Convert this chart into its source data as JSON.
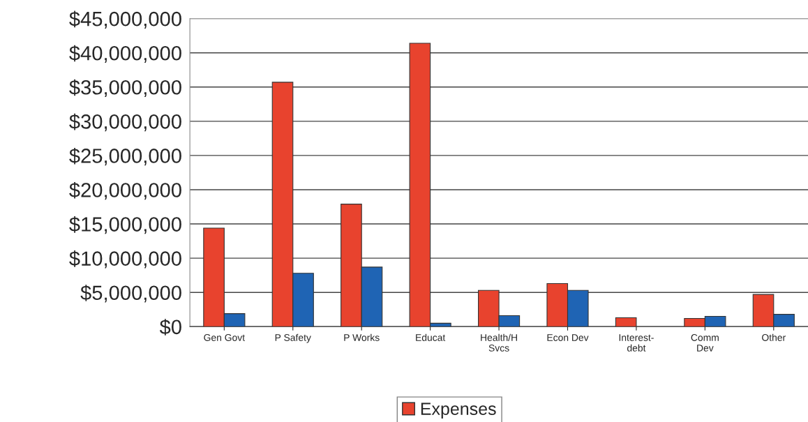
{
  "chart_data": {
    "type": "bar",
    "categories": [
      "Gen Govt",
      "P Safety",
      "P Works",
      "Educat",
      "Health/H\nSvcs",
      "Econ Dev",
      "Interest-\ndebt",
      "Comm\nDev",
      "Other"
    ],
    "series": [
      {
        "name": "Expenses",
        "color": "#e8432e",
        "values": [
          14400000,
          35700000,
          17900000,
          41400000,
          5300000,
          6300000,
          1300000,
          1200000,
          4700000
        ]
      },
      {
        "color": "#1f64b4",
        "values": [
          1900000,
          7800000,
          8700000,
          500000,
          1600000,
          5300000,
          null,
          1500000,
          1800000
        ]
      }
    ],
    "ylim": [
      0,
      45000000
    ],
    "yticks": [
      {
        "value": 0,
        "label": "$0"
      },
      {
        "value": 5000000,
        "label": "$5,000,000"
      },
      {
        "value": 10000000,
        "label": "$10,000,000"
      },
      {
        "value": 15000000,
        "label": "$15,000,000"
      },
      {
        "value": 20000000,
        "label": "$20,000,000"
      },
      {
        "value": 25000000,
        "label": "$25,000,000"
      },
      {
        "value": 30000000,
        "label": "$30,000,000"
      },
      {
        "value": 35000000,
        "label": "$35,000,000"
      },
      {
        "value": 40000000,
        "label": "$40,000,000"
      },
      {
        "value": 45000000,
        "label": "$45,000,000"
      }
    ],
    "grid": "y",
    "legend": "bottom"
  }
}
